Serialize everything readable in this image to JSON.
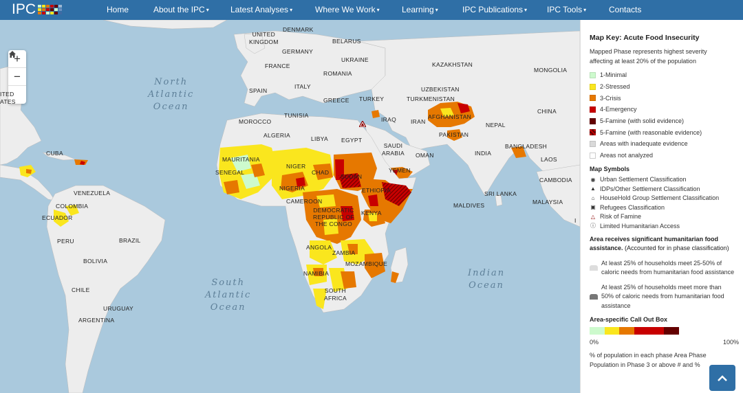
{
  "nav": {
    "logo": "IPC",
    "items": [
      {
        "label": "Home",
        "caret": ""
      },
      {
        "label": "About the IPC",
        "caret": "▾"
      },
      {
        "label": "Latest Analyses",
        "caret": "▾"
      },
      {
        "label": "Where We Work",
        "caret": "▾"
      },
      {
        "label": "Learning",
        "caret": "▾"
      },
      {
        "label": "IPC Publications",
        "caret": "▾"
      },
      {
        "label": "IPC Tools",
        "caret": "▾"
      },
      {
        "label": "Contacts",
        "caret": ""
      }
    ],
    "color": "#2f6fa6"
  },
  "map": {
    "zoom_in": "+",
    "zoom_out": "−",
    "home_icon": "home-icon",
    "oceans": {
      "north_atlantic": "North\nAtlantic\nOcean",
      "south_atlantic": "South\nAtlantic\nOcean",
      "indian": "Indian\nOcean"
    },
    "countries": {
      "united_kingdom": "UNITED\nKINGDOM",
      "denmark": "DENMARK",
      "belarus": "BELARUS",
      "germany": "GERMANY",
      "ukraine": "UKRAINE",
      "france": "FRANCE",
      "romania": "ROMANIA",
      "kazakhstan": "KAZAKHSTAN",
      "mongolia": "MONGOLIA",
      "spain": "SPAIN",
      "italy": "ITALY",
      "uzbekistan": "UZBEKISTAN",
      "greece": "GREECE",
      "turkey": "TURKEY",
      "turkmenistan": "TURKMENISTAN",
      "china": "CHINA",
      "tunisia": "TUNISIA",
      "morocco": "MOROCCO",
      "iraq": "IRAQ",
      "iran": "IRAN",
      "afghanistan": "AFGHANISTAN",
      "nepal": "NEPAL",
      "algeria": "ALGERIA",
      "libya": "LIBYA",
      "egypt": "EGYPT",
      "saudi_arabia": "SAUDI\nARABIA",
      "oman": "OMAN",
      "pakistan": "PAKISTAN",
      "india": "INDIA",
      "bangladesh": "BANGLADESH",
      "mauritania": "MAURITANIA",
      "niger": "NIGER",
      "chad": "CHAD",
      "sudan": "SUDAN",
      "yemen": "YEMEN",
      "laos": "LAOS",
      "senegal": "SENEGAL",
      "ethiopia": "ETHIOPIA",
      "nigeria": "NIGERIA",
      "cambodia": "CAMBODIA",
      "sri_lanka": "SRI LANKA",
      "cameroon": "CAMEROON",
      "malaysia": "MALAYSIA",
      "maldives": "MALDIVES",
      "drc": "DEMOCRATIC\nREPUBLIC OF\nTHE CONGO",
      "kenya": "KENYA",
      "cuba": "CUBA",
      "venezuela": "VENEZUELA",
      "colombia": "COLOMBIA",
      "ecuador": "ECUADOR",
      "peru": "PERU",
      "brazil": "BRAZIL",
      "angola": "ANGOLA",
      "zambia": "ZAMBIA",
      "mozambique": "MOZAMBIQUE",
      "bolivia": "BOLIVIA",
      "namibia": "NAMIBIA",
      "south_africa": "SOUTH\nAFRICA",
      "chile": "CHILE",
      "uruguay": "URUGUAY",
      "argentina": "ARGENTINA",
      "united_states_partial": "ITED\nATES",
      "indonesia_partial": "I"
    }
  },
  "key": {
    "title": "Map Key: Acute Food Insecurity",
    "description": "Mapped Phase represents highest severity affecting at least 20% of the population",
    "phases": [
      {
        "label": "1-Minimal",
        "color": "#cdfacd"
      },
      {
        "label": "2-Stressed",
        "color": "#fae61e"
      },
      {
        "label": "3-Crisis",
        "color": "#e67800"
      },
      {
        "label": "4-Emergency",
        "color": "#c80000"
      },
      {
        "label": "5-Famine (with solid evidence)",
        "color": "#640000"
      },
      {
        "label": "5-Famine (with reasonable evidence)",
        "color": "hatched"
      },
      {
        "label": "Areas with inadequate evidence",
        "color": "#d9d9d9"
      },
      {
        "label": "Areas not analyzed",
        "color": "#ffffff"
      }
    ],
    "symbols_title": "Map Symbols",
    "symbols": [
      {
        "icon": "dot-circle-icon",
        "label": "Urban Settlement Classification"
      },
      {
        "icon": "tent-icon",
        "label": "IDPs/Other Settlement Classification"
      },
      {
        "icon": "house-icon",
        "label": "HouseHold Group Settlement Classification"
      },
      {
        "icon": "refugee-icon",
        "label": "Refugees Classification"
      },
      {
        "icon": "risk-triangle-icon",
        "label": "Risk of Famine"
      },
      {
        "icon": "limited-access-icon",
        "label": "Limited Humanitarian Access"
      }
    ],
    "assist_title": "Area receives significant humanitarian food assistance.",
    "assist_note": " (Accounted for in phase classification)",
    "assist_items": [
      {
        "icon": "light-grey-bar-icon",
        "label": "At least 25% of households meet 25-50% of caloric needs from humanitarian food assistance"
      },
      {
        "icon": "dark-grey-bar-icon",
        "label": "At least 25% of households meet more than 50% of caloric needs from humanitarian food assistance"
      }
    ],
    "callout_title": "Area-specific Call Out Box",
    "callout_scale_min": "0%",
    "callout_scale_max": "100%",
    "callout_colors": [
      "#cdfacd",
      "#fae61e",
      "#e67800",
      "#c80000",
      "#c80000",
      "#640000"
    ],
    "footer_line1": "% of population in each phase Area Phase",
    "footer_line2": "Population in Phase 3 or above # and %"
  },
  "back_to_top_icon": "chevron-up-icon"
}
